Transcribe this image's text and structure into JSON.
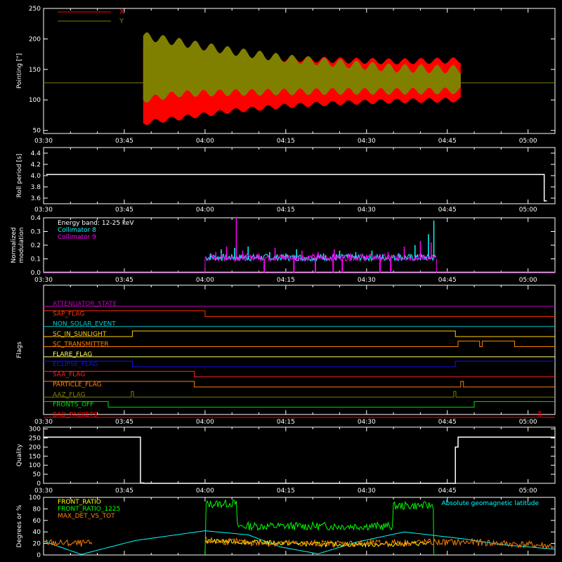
{
  "time_ticks": [
    "03:30",
    "03:45",
    "04:00",
    "04:15",
    "04:30",
    "04:45",
    "05:00"
  ],
  "chart_data": [
    {
      "id": "pointing",
      "type": "area",
      "ylabel": "Pointing [\"]",
      "ylim": [
        45,
        250
      ],
      "yticks": [
        50,
        100,
        150,
        200,
        250
      ],
      "xlim_minutes": [
        0,
        95
      ],
      "legend": [
        {
          "name": "X",
          "color": "#ff0000"
        },
        {
          "name": "Y",
          "color": "#808000"
        }
      ],
      "baseline": 128,
      "active_range_minutes": [
        18.5,
        77.5
      ],
      "series": [
        {
          "name": "X",
          "color": "#ff0000",
          "upper_t": [
            18.5,
            25,
            35,
            45,
            55,
            65,
            77.5
          ],
          "upper_v": [
            185,
            178,
            170,
            168,
            165,
            163,
            165
          ],
          "lower_t": [
            18.5,
            25,
            35,
            45,
            55,
            65,
            77.5
          ],
          "lower_v": [
            62,
            70,
            82,
            90,
            95,
            98,
            100
          ]
        },
        {
          "name": "Y",
          "color": "#808000",
          "upper_t": [
            18.5,
            25,
            35,
            45,
            55,
            65,
            77.5
          ],
          "upper_v": [
            205,
            195,
            180,
            168,
            160,
            152,
            150
          ],
          "lower_t": [
            18.5,
            25,
            35,
            45,
            55,
            65,
            77.5
          ],
          "lower_v": [
            100,
            110,
            112,
            113,
            114,
            114,
            115
          ]
        }
      ]
    },
    {
      "id": "roll",
      "type": "line",
      "ylabel": "Roll period [s]",
      "ylim": [
        3.5,
        4.5
      ],
      "yticks": [
        "3.6",
        "3.8",
        "4.0",
        "4.2",
        "4.4"
      ],
      "xlim_minutes": [
        0,
        95
      ],
      "series": [
        {
          "name": "",
          "color": "#ffffff",
          "t": [
            0.5,
            93,
            93,
            93.5
          ],
          "v": [
            4.02,
            4.02,
            3.55,
            3.55
          ]
        }
      ]
    },
    {
      "id": "modulation",
      "type": "line",
      "ylabel": "Normalized modulation",
      "ylim": [
        0,
        0.4
      ],
      "yticks": [
        "0.0",
        "0.1",
        "0.2",
        "0.3",
        "0.4"
      ],
      "xlim_minutes": [
        0,
        95
      ],
      "legend": [
        {
          "name": "Energy band: 12-25 keV",
          "color": "#ffffff"
        },
        {
          "name": "Collimator 8",
          "color": "#00ffff"
        },
        {
          "name": "Collimator 9",
          "color": "#ff00ff"
        }
      ],
      "active_range_minutes": [
        30,
        73
      ],
      "baseline_value": 0.1,
      "series": [
        {
          "name": "Collimator 8",
          "color": "#00ffff",
          "spike_t": [
            31,
            33,
            35.5,
            38,
            42,
            45,
            47,
            52,
            55,
            58,
            61,
            63,
            66,
            69,
            71.5,
            72.5
          ],
          "spike_v": [
            0.14,
            0.17,
            0.18,
            0.19,
            0.15,
            0.14,
            0.17,
            0.14,
            0.16,
            0.15,
            0.16,
            0.13,
            0.14,
            0.2,
            0.28,
            0.38
          ]
        },
        {
          "name": "Collimator 9",
          "color": "#ff00ff",
          "spike_t": [
            32,
            34,
            35.8,
            37,
            40,
            43,
            44.5,
            48,
            51,
            54,
            57,
            60,
            64,
            67,
            70,
            72
          ],
          "spike_v": [
            0.15,
            0.19,
            0.4,
            0.16,
            0.14,
            0.18,
            0.13,
            0.16,
            0.15,
            0.17,
            0.14,
            0.13,
            0.15,
            0.19,
            0.23,
            0.22
          ],
          "drop_t": [
            41,
            46.5,
            50.5,
            53.8,
            55.5,
            62.5,
            64.5
          ],
          "drop_v": [
            0.0,
            0.0,
            0.0,
            0.0,
            0.0,
            0.0,
            0.01
          ]
        }
      ]
    },
    {
      "id": "flags",
      "type": "line",
      "ylabel": "Flags",
      "xlim_minutes": [
        0,
        95
      ],
      "flags": [
        {
          "label": "ATTENUATOR_STATE",
          "color": "#c000c0",
          "segments": [
            [
              0,
              95,
              0
            ]
          ]
        },
        {
          "label": "SAP_FLAG",
          "color": "#ff3000",
          "segments": [
            [
              0,
              30,
              1
            ],
            [
              30,
              95,
              0
            ]
          ]
        },
        {
          "label": "NON_SOLAR_EVENT",
          "color": "#00c8c8",
          "segments": [
            [
              0,
              95,
              0
            ]
          ]
        },
        {
          "label": "SC_IN_SUNLIGHT",
          "color": "#ffd000",
          "segments": [
            [
              0,
              16.5,
              0
            ],
            [
              16.5,
              76.5,
              1
            ],
            [
              76.5,
              95,
              0
            ]
          ]
        },
        {
          "label": "SC_TRANSMITTER",
          "color": "#ff8000",
          "segments": [
            [
              0,
              77,
              0
            ],
            [
              77,
              81,
              1
            ],
            [
              81,
              81.5,
              0
            ],
            [
              81.5,
              87.5,
              1
            ],
            [
              87.5,
              95,
              0
            ]
          ]
        },
        {
          "label": "FLARE_FLAG",
          "color": "#ffff60",
          "segments": [
            [
              0,
              95,
              0
            ]
          ]
        },
        {
          "label": "ECLIPSE_FLAG",
          "color": "#1010ff",
          "segments": [
            [
              0,
              16.5,
              1
            ],
            [
              16.5,
              76.5,
              0
            ],
            [
              76.5,
              95,
              1
            ]
          ]
        },
        {
          "label": "SAA_FLAG",
          "color": "#ff2020",
          "segments": [
            [
              0,
              28,
              1
            ],
            [
              28,
              95,
              0
            ]
          ]
        },
        {
          "label": "PARTICLE_FLAG",
          "color": "#ff8000",
          "segments": [
            [
              0,
              28,
              1
            ],
            [
              28,
              77.5,
              0
            ],
            [
              77.5,
              78,
              1
            ],
            [
              78,
              95,
              0
            ]
          ]
        },
        {
          "label": "AAZ_FLAG",
          "color": "#808000",
          "segments": [
            [
              0,
              16.3,
              0
            ],
            [
              16.3,
              16.7,
              1
            ],
            [
              16.7,
              76.2,
              0
            ],
            [
              76.2,
              76.6,
              1
            ],
            [
              76.6,
              95,
              0
            ]
          ]
        },
        {
          "label": "FRONTS_OFF",
          "color": "#00e000",
          "segments": [
            [
              0,
              12,
              1
            ],
            [
              12,
              80,
              0
            ],
            [
              80,
              95,
              1
            ]
          ]
        },
        {
          "label": "BAD_PACKETS",
          "color": "#ff0000",
          "segments": [
            [
              0,
              92,
              0
            ],
            [
              92,
              92.3,
              1
            ],
            [
              92.3,
              95,
              0
            ]
          ]
        }
      ]
    },
    {
      "id": "quality",
      "type": "line",
      "ylabel": "Quality",
      "ylim": [
        0,
        310
      ],
      "yticks": [
        0,
        50,
        100,
        150,
        200,
        250,
        300
      ],
      "xlim_minutes": [
        0,
        95
      ],
      "series": [
        {
          "name": "",
          "color": "#ffffff",
          "t": [
            0,
            18,
            18,
            18.6,
            18.6,
            76.5,
            76.5,
            77,
            77,
            95
          ],
          "v": [
            255,
            255,
            2,
            2,
            0,
            0,
            200,
            200,
            255,
            255
          ]
        }
      ]
    },
    {
      "id": "degrees",
      "type": "line",
      "ylabel": "Degrees or %",
      "ylim": [
        0,
        100
      ],
      "yticks": [
        0,
        20,
        40,
        60,
        80,
        100
      ],
      "xlim_minutes": [
        0,
        95
      ],
      "legend": [
        {
          "name": "FRONT_RATIO",
          "color": "#ffff00"
        },
        {
          "name": "FRONT_RATIO_1225",
          "color": "#00ff00"
        },
        {
          "name": "MAX_DET_VS_TOT",
          "color": "#ff8000"
        },
        {
          "name": "Absolute geomagnetic latitude",
          "color": "#00ffff"
        }
      ],
      "series": [
        {
          "name": "Absolute geomagnetic latitude",
          "color": "#00ffff",
          "t": [
            0,
            7,
            17,
            30,
            38,
            44,
            51,
            58,
            67,
            78,
            85,
            95
          ],
          "v": [
            24,
            1,
            25,
            42,
            35,
            14,
            2,
            22,
            40,
            28,
            18,
            10
          ]
        },
        {
          "name": "FRONT_RATIO_1225",
          "color": "#00ff00",
          "t": [
            30,
            30,
            36,
            36,
            65,
            65,
            72.5,
            72.5
          ],
          "v": [
            0,
            88,
            90,
            50,
            50,
            85,
            86,
            0
          ]
        },
        {
          "name": "FRONT_RATIO",
          "color": "#ffff00",
          "t": [
            30,
            40,
            50,
            60,
            72
          ],
          "v": [
            24,
            22,
            19,
            18,
            20
          ]
        },
        {
          "name": "MAX_DET_VS_TOT",
          "color": "#ff8000",
          "t": [
            0,
            5,
            9,
            30,
            40,
            50,
            60,
            70,
            80,
            90,
            95
          ],
          "v": [
            22,
            20,
            20,
            25,
            21,
            20,
            20,
            22,
            22,
            18,
            15
          ]
        }
      ]
    }
  ]
}
